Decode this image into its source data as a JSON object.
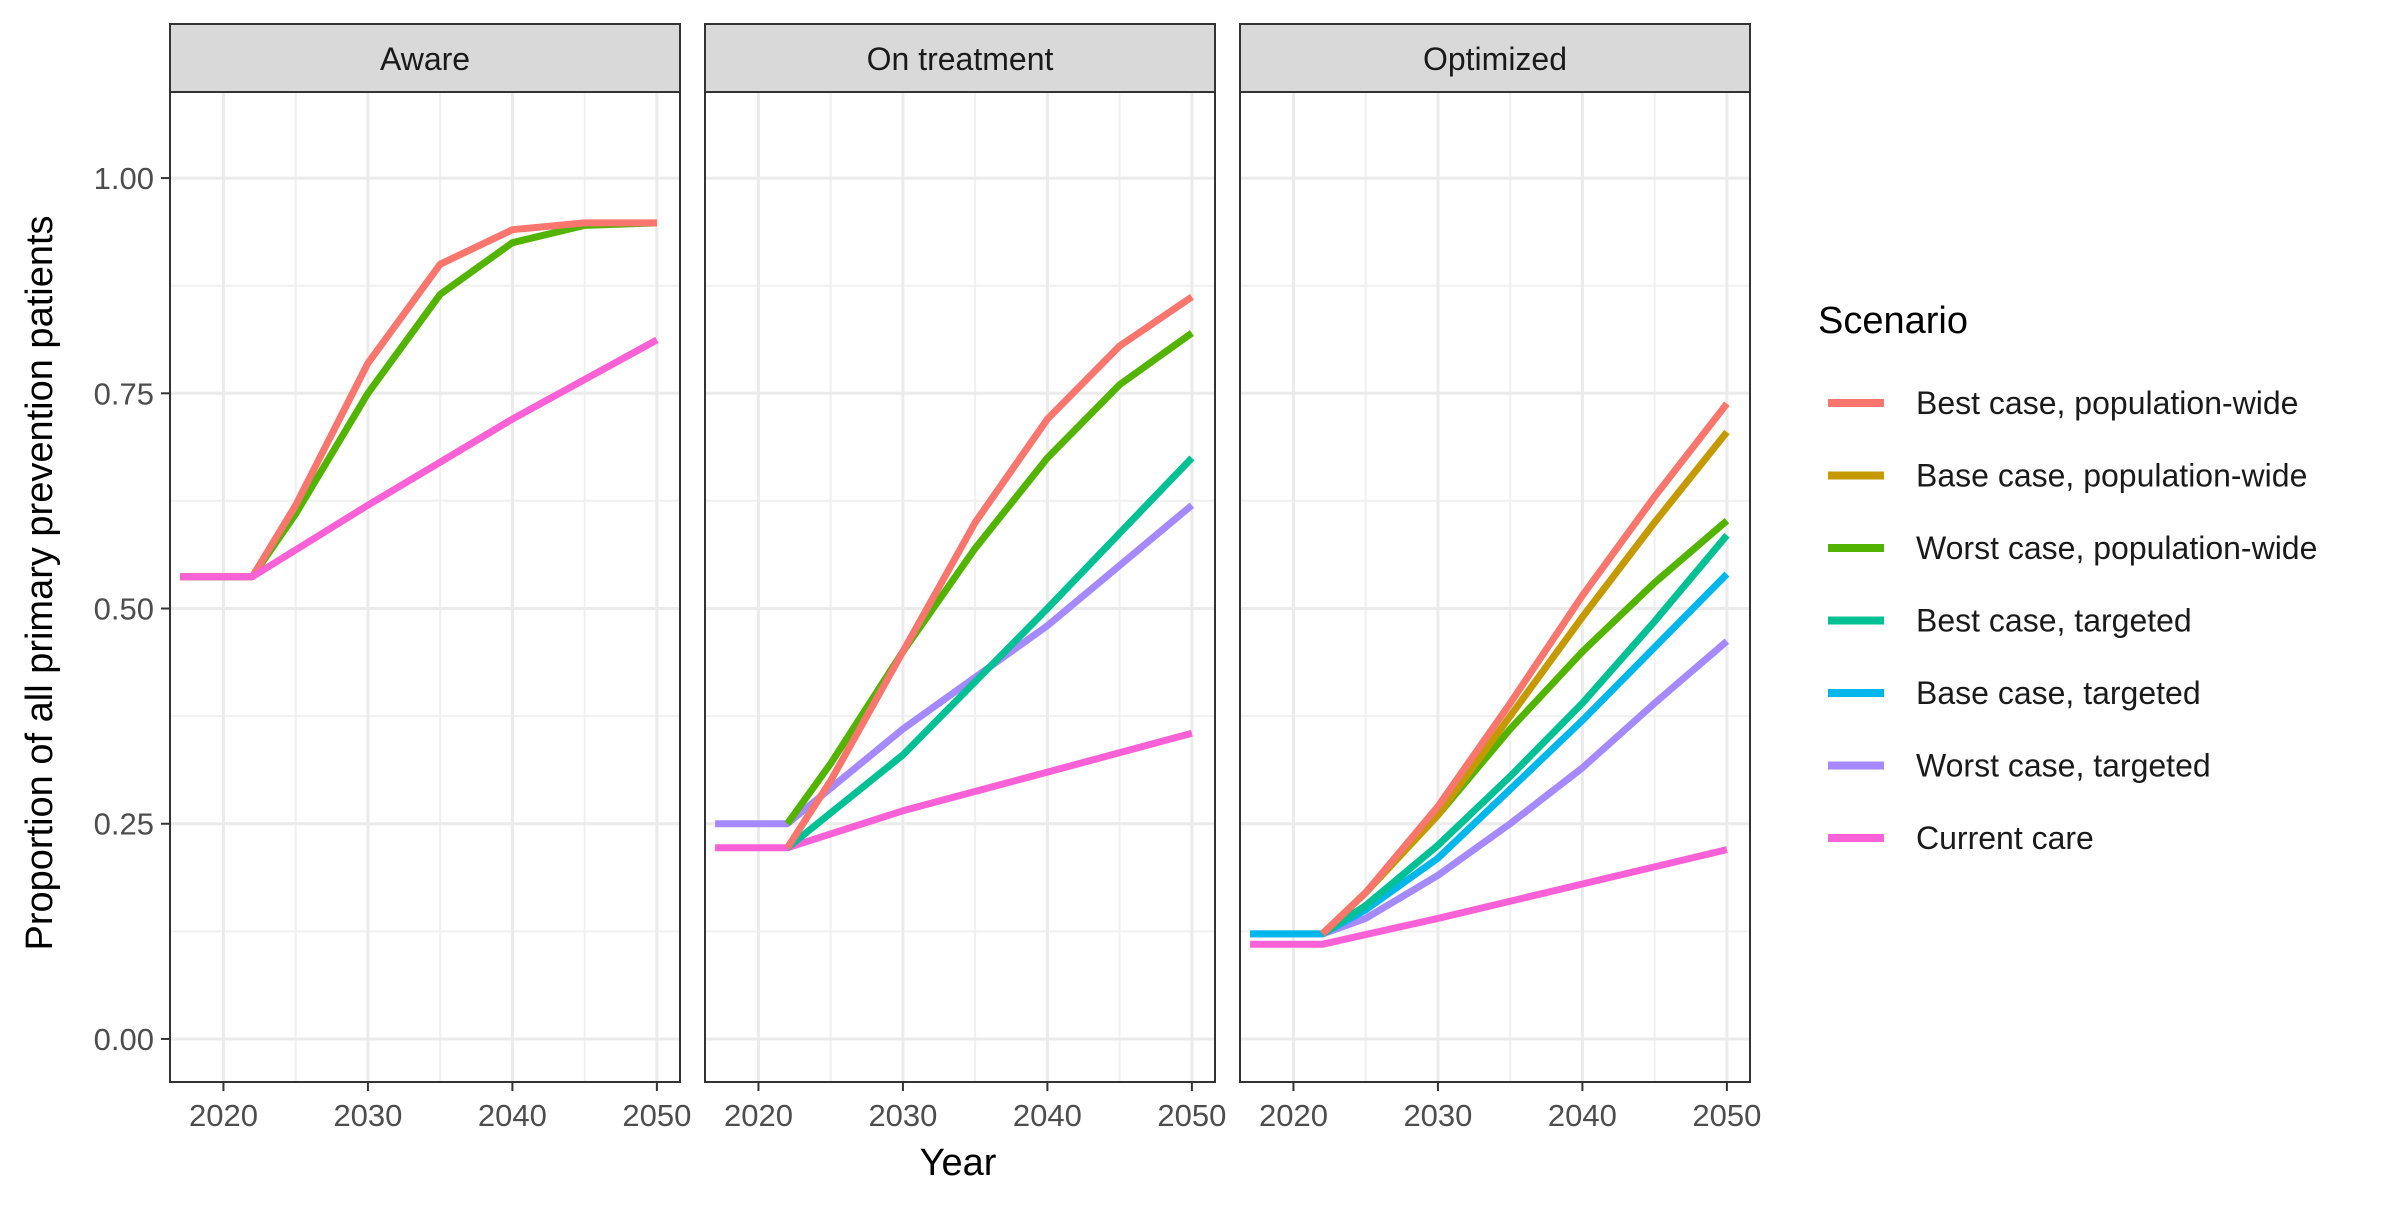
{
  "chart_data": {
    "type": "line",
    "facets": [
      "Aware",
      "On treatment",
      "Optimized"
    ],
    "xlabel": "Year",
    "ylabel": "Proportion of all primary prevention patients",
    "x_ticks": [
      2020,
      2030,
      2040,
      2050
    ],
    "y_ticks": [
      0.0,
      0.25,
      0.5,
      0.75,
      1.0
    ],
    "y_tick_labels": [
      "0.00",
      "0.25",
      "0.50",
      "0.75",
      "1.00"
    ],
    "xlim": [
      2016.3,
      2051.6
    ],
    "ylim": [
      -0.05,
      1.1
    ],
    "grid": true,
    "legend": {
      "title": "Scenario",
      "placement": "right",
      "entries": [
        {
          "name": "Best case, population-wide",
          "color": "#F8766D"
        },
        {
          "name": "Base case, population-wide",
          "color": "#C49A00"
        },
        {
          "name": "Worst case, population-wide",
          "color": "#53B400"
        },
        {
          "name": "Best case, targeted",
          "color": "#00C094"
        },
        {
          "name": "Base case, targeted",
          "color": "#00B6EB"
        },
        {
          "name": "Worst case, targeted",
          "color": "#A58AFF"
        },
        {
          "name": "Current care",
          "color": "#FB61D7"
        }
      ]
    },
    "panels": [
      {
        "facet": "Aware",
        "series": [
          {
            "name": "Worst case, population-wide",
            "x": [
              2017,
              2022,
              2025,
              2030,
              2035,
              2040,
              2045,
              2050
            ],
            "y": [
              0.537,
              0.537,
              0.61,
              0.75,
              0.865,
              0.925,
              0.945,
              0.948
            ]
          },
          {
            "name": "Best case, population-wide",
            "x": [
              2017,
              2022,
              2025,
              2030,
              2035,
              2040,
              2045,
              2050
            ],
            "y": [
              0.537,
              0.537,
              0.62,
              0.785,
              0.9,
              0.94,
              0.948,
              0.948
            ]
          },
          {
            "name": "Current care",
            "x": [
              2017,
              2022,
              2030,
              2040,
              2050
            ],
            "y": [
              0.537,
              0.537,
              0.62,
              0.72,
              0.812
            ]
          }
        ]
      },
      {
        "facet": "On treatment",
        "series": [
          {
            "name": "Current care",
            "x": [
              2017,
              2022,
              2030,
              2040,
              2050
            ],
            "y": [
              0.222,
              0.222,
              0.265,
              0.31,
              0.355
            ]
          },
          {
            "name": "Worst case, targeted",
            "x": [
              2017,
              2022,
              2030,
              2040,
              2050
            ],
            "y": [
              0.25,
              0.25,
              0.36,
              0.48,
              0.62
            ]
          },
          {
            "name": "Best case, targeted",
            "x": [
              2022,
              2030,
              2040,
              2050
            ],
            "y": [
              0.222,
              0.33,
              0.5,
              0.675
            ]
          },
          {
            "name": "Worst case, population-wide",
            "x": [
              2022,
              2025,
              2030,
              2035,
              2040,
              2045,
              2050
            ],
            "y": [
              0.25,
              0.32,
              0.45,
              0.57,
              0.675,
              0.76,
              0.82
            ]
          },
          {
            "name": "Best case, population-wide",
            "x": [
              2022,
              2025,
              2030,
              2035,
              2040,
              2045,
              2050
            ],
            "y": [
              0.222,
              0.3,
              0.45,
              0.6,
              0.72,
              0.805,
              0.862
            ]
          }
        ]
      },
      {
        "facet": "Optimized",
        "series": [
          {
            "name": "Current care",
            "x": [
              2017,
              2022,
              2030,
              2040,
              2050
            ],
            "y": [
              0.11,
              0.11,
              0.14,
              0.18,
              0.22
            ]
          },
          {
            "name": "Worst case, targeted",
            "x": [
              2017,
              2022,
              2025,
              2030,
              2035,
              2040,
              2045,
              2050
            ],
            "y": [
              0.122,
              0.122,
              0.14,
              0.19,
              0.25,
              0.315,
              0.39,
              0.462
            ]
          },
          {
            "name": "Base case, targeted",
            "x": [
              2017,
              2022,
              2025,
              2030,
              2035,
              2040,
              2045,
              2050
            ],
            "y": [
              0.122,
              0.122,
              0.15,
              0.21,
              0.29,
              0.37,
              0.455,
              0.54
            ]
          },
          {
            "name": "Best case, targeted",
            "x": [
              2022,
              2025,
              2030,
              2035,
              2040,
              2045,
              2050
            ],
            "y": [
              0.122,
              0.155,
              0.225,
              0.305,
              0.39,
              0.485,
              0.585
            ]
          },
          {
            "name": "Worst case, population-wide",
            "x": [
              2022,
              2025,
              2030,
              2035,
              2040,
              2045,
              2050
            ],
            "y": [
              0.122,
              0.17,
              0.26,
              0.36,
              0.45,
              0.53,
              0.602
            ]
          },
          {
            "name": "Base case, population-wide",
            "x": [
              2022,
              2025,
              2030,
              2035,
              2040,
              2045,
              2050
            ],
            "y": [
              0.122,
              0.17,
              0.26,
              0.375,
              0.49,
              0.6,
              0.705
            ]
          },
          {
            "name": "Best case, population-wide",
            "x": [
              2022,
              2025,
              2030,
              2035,
              2040,
              2045,
              2050
            ],
            "y": [
              0.122,
              0.17,
              0.27,
              0.39,
              0.515,
              0.63,
              0.738
            ]
          }
        ]
      }
    ]
  }
}
